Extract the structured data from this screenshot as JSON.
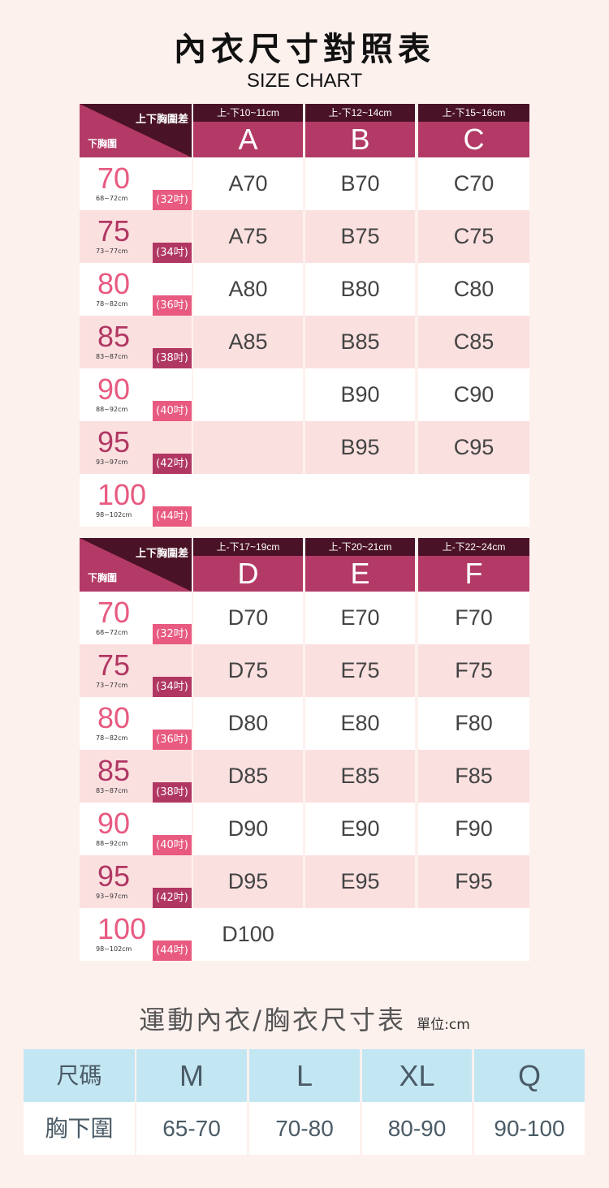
{
  "title": "內衣尺寸對照表",
  "subtitle": "SIZE CHART",
  "corner": {
    "top_label": "上下胸圍差",
    "bottom_label": "下胸圍"
  },
  "colors": {
    "dark_header": "#4a1226",
    "header": "#b33a66",
    "pink_num": "#e85a80",
    "dark_num": "#b13763",
    "row_alt": "#fbe0e0",
    "blue_header": "#c3e6f3"
  },
  "band_sizes": [
    {
      "num": "70",
      "cm": "68~72cm",
      "inch": "(32吋)"
    },
    {
      "num": "75",
      "cm": "73~77cm",
      "inch": "(34吋)"
    },
    {
      "num": "80",
      "cm": "78~82cm",
      "inch": "(36吋)"
    },
    {
      "num": "85",
      "cm": "83~87cm",
      "inch": "(38吋)"
    },
    {
      "num": "90",
      "cm": "88~92cm",
      "inch": "(40吋)"
    },
    {
      "num": "95",
      "cm": "93~97cm",
      "inch": "(42吋)"
    },
    {
      "num": "100",
      "cm": "98~102cm",
      "inch": "(44吋)"
    }
  ],
  "tables": [
    {
      "columns": [
        {
          "range": "上-下10~11cm",
          "cup": "A"
        },
        {
          "range": "上-下12~14cm",
          "cup": "B"
        },
        {
          "range": "上-下15~16cm",
          "cup": "C"
        }
      ],
      "rows": [
        [
          "A70",
          "B70",
          "C70"
        ],
        [
          "A75",
          "B75",
          "C75"
        ],
        [
          "A80",
          "B80",
          "C80"
        ],
        [
          "A85",
          "B85",
          "C85"
        ],
        [
          "",
          "B90",
          "C90"
        ],
        [
          "",
          "B95",
          "C95"
        ],
        [
          "",
          "",
          ""
        ]
      ]
    },
    {
      "columns": [
        {
          "range": "上-下17~19cm",
          "cup": "D"
        },
        {
          "range": "上-下20~21cm",
          "cup": "E"
        },
        {
          "range": "上-下22~24cm",
          "cup": "F"
        }
      ],
      "rows": [
        [
          "D70",
          "E70",
          "F70"
        ],
        [
          "D75",
          "E75",
          "F75"
        ],
        [
          "D80",
          "E80",
          "F80"
        ],
        [
          "D85",
          "E85",
          "F85"
        ],
        [
          "D90",
          "E90",
          "F90"
        ],
        [
          "D95",
          "E95",
          "F95"
        ],
        [
          "D100",
          "",
          ""
        ]
      ]
    }
  ],
  "sports": {
    "title": "運動內衣/胸衣尺寸表",
    "unit": "單位:cm",
    "header": [
      "尺碼",
      "M",
      "L",
      "XL",
      "Q"
    ],
    "row": [
      "胸下圍",
      "65-70",
      "70-80",
      "80-90",
      "90-100"
    ]
  }
}
